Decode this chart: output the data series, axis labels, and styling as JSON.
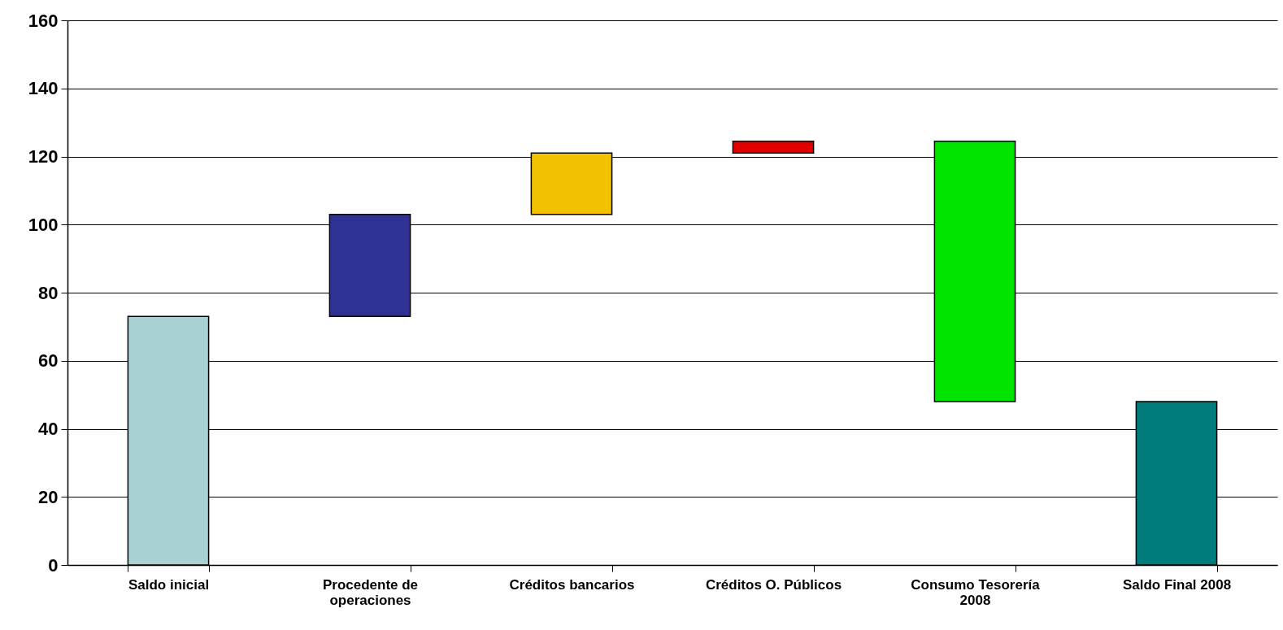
{
  "chart_data": {
    "type": "bar",
    "categories": [
      "Saldo inicial",
      "Procedente de operaciones",
      "Créditos bancarios",
      "Créditos O. Públicos",
      "Consumo Tesorería 2008",
      "Saldo Final 2008"
    ],
    "values": [
      73,
      30,
      18,
      3.5,
      -76.5,
      48
    ],
    "base": [
      0,
      73,
      103,
      121,
      124.5,
      0
    ],
    "colors": [
      "#a9d0d3",
      "#2f3193",
      "#f2c200",
      "#e00000",
      "#00e400",
      "#007c7c"
    ],
    "ylim": [
      0,
      160
    ],
    "yticks": [
      0,
      20,
      40,
      60,
      80,
      100,
      120,
      140,
      160
    ],
    "grid": "y"
  }
}
